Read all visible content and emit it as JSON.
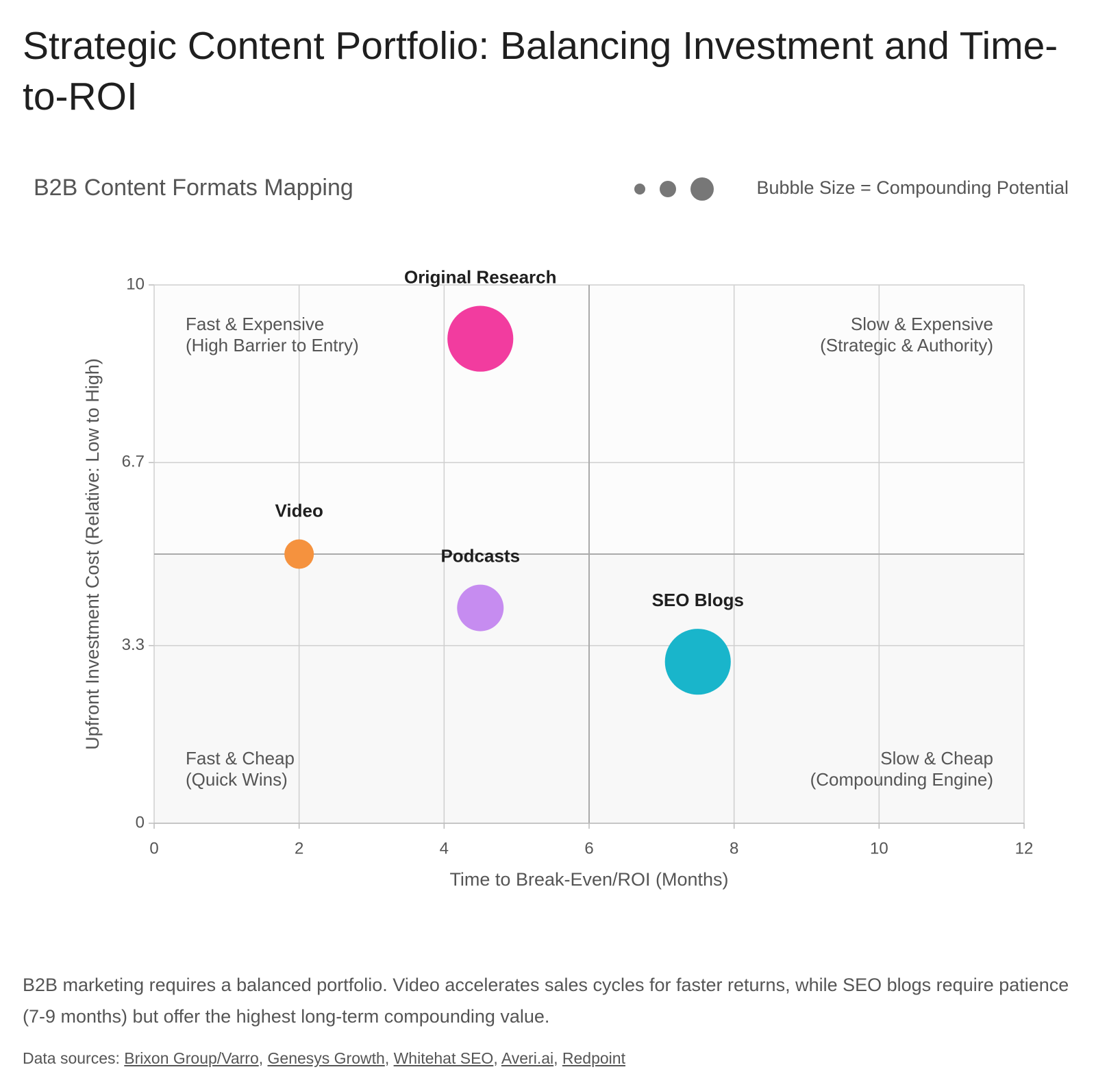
{
  "title": "Strategic Content Portfolio: Balancing Investment and Time-to-ROI",
  "chart_data": {
    "type": "bubble",
    "subtitle": "B2B Content Formats Mapping",
    "size_legend": "Bubble Size = Compounding Potential",
    "x_label": "Time to Break-Even/ROI (Months)",
    "y_label": "Upfront Investment Cost (Relative: Low to High)",
    "xlim": [
      0,
      12
    ],
    "xticks": [
      0,
      2,
      4,
      6,
      8,
      10,
      12
    ],
    "ylim": [
      0,
      10
    ],
    "yticks": [
      0,
      3.3,
      6.7,
      10
    ],
    "grid": true,
    "dividers": {
      "x": 6,
      "y": 5
    },
    "series": [
      {
        "name": "Video",
        "color": "#f5923e",
        "x": [
          2
        ],
        "values": [
          5
        ],
        "sizes": [
          2
        ]
      },
      {
        "name": "Podcasts",
        "color": "#c68cf0",
        "x": [
          4.5
        ],
        "values": [
          4
        ],
        "sizes": [
          5
        ]
      },
      {
        "name": "Original Research",
        "color": "#f23c9f",
        "x": [
          4.5
        ],
        "values": [
          9
        ],
        "sizes": [
          10
        ]
      },
      {
        "name": "SEO Blogs",
        "color": "#19b5cb",
        "x": [
          7.5
        ],
        "values": [
          3
        ],
        "sizes": [
          10
        ]
      }
    ],
    "annotations": [
      {
        "corner": "top-left",
        "lines": [
          "Fast & Expensive",
          "(High Barrier to Entry)"
        ]
      },
      {
        "corner": "top-right",
        "lines": [
          "Slow & Expensive",
          "(Strategic & Authority)"
        ]
      },
      {
        "corner": "bottom-left",
        "lines": [
          "Fast & Cheap",
          "(Quick Wins)"
        ]
      },
      {
        "corner": "bottom-right",
        "lines": [
          "Slow & Cheap",
          "(Compounding Engine)"
        ]
      }
    ]
  },
  "description": "B2B marketing requires a balanced portfolio. Video accelerates sales cycles for faster returns, while SEO blogs require patience (7-9 months) but offer the highest long-term compounding value.",
  "sources": {
    "label": "Data sources:",
    "separator": ",",
    "links": [
      "Brixon Group/Varro",
      "Genesys Growth",
      "Whitehat SEO",
      "Averi.ai",
      "Redpoint"
    ]
  }
}
